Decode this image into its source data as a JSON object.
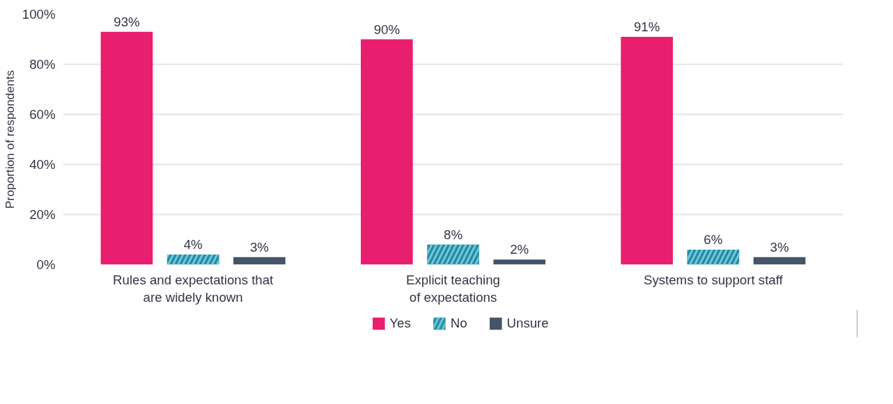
{
  "chart_data": {
    "type": "bar",
    "ylabel": "Proportion of respondents",
    "categories": [
      "Rules and expectations that\nare widely known",
      "Explicit teaching\nof expectations",
      "Systems to support staff"
    ],
    "series": [
      {
        "name": "Yes",
        "color": "#e91e6e",
        "values": [
          93,
          90,
          91
        ],
        "value_labels": [
          "93%",
          "90%",
          "91%"
        ]
      },
      {
        "name": "No",
        "color": "#1a8fa8",
        "values": [
          4,
          8,
          6
        ],
        "value_labels": [
          "4%",
          "8%",
          "6%"
        ]
      },
      {
        "name": "Unsure",
        "color": "#455568",
        "values": [
          3,
          2,
          3
        ],
        "value_labels": [
          "3%",
          "2%",
          "3%"
        ]
      }
    ],
    "ylim": [
      0,
      100
    ],
    "yticks": [
      {
        "value": 0,
        "label": "0%"
      },
      {
        "value": 20,
        "label": "20%"
      },
      {
        "value": 40,
        "label": "40%"
      },
      {
        "value": 60,
        "label": "60%"
      },
      {
        "value": 80,
        "label": "80%"
      },
      {
        "value": 100,
        "label": "100%"
      }
    ],
    "grid": "y",
    "legend": "bottom"
  }
}
